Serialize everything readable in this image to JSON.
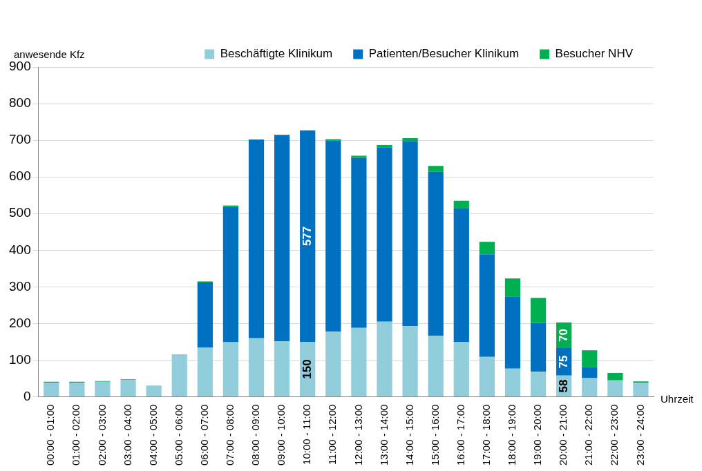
{
  "chart_data": {
    "type": "bar",
    "stacked": true,
    "ylabel": "anwesende Kfz",
    "xlabel": "Uhrzeit",
    "categories": [
      "00:00 - 01:00",
      "01:00 - 02:00",
      "02:00 - 03:00",
      "03:00 - 04:00",
      "04:00 - 05:00",
      "05:00 - 06:00",
      "06:00 - 07:00",
      "07:00 - 08:00",
      "08:00 - 09:00",
      "09:00 - 10:00",
      "10:00 - 11:00",
      "11:00 - 12:00",
      "12:00 - 13:00",
      "13:00 - 14:00",
      "14:00 - 15:00",
      "15:00 - 16:00",
      "16:00 - 17:00",
      "17:00 - 18:00",
      "18:00 - 19:00",
      "19:00 - 20:00",
      "20:00 - 21:00",
      "21:00 - 22:00",
      "22:00 - 23:00",
      "23:00 - 24:00"
    ],
    "series": [
      {
        "name": "Beschäftigte Klinikum",
        "color": "#92cddc",
        "values": [
          39,
          39,
          41,
          46,
          31,
          116,
          134,
          149,
          160,
          152,
          150,
          178,
          188,
          205,
          193,
          167,
          150,
          109,
          77,
          69,
          58,
          51,
          45,
          39
        ],
        "value_labels": [
          null,
          null,
          null,
          null,
          null,
          null,
          null,
          null,
          null,
          null,
          "150",
          null,
          null,
          null,
          null,
          null,
          null,
          null,
          null,
          null,
          "58",
          null,
          null,
          null
        ]
      },
      {
        "name": "Patienten/Besucher Klinikum",
        "color": "#0070c0",
        "values": [
          null,
          null,
          null,
          null,
          null,
          null,
          178,
          370,
          542,
          563,
          577,
          521,
          464,
          476,
          505,
          447,
          365,
          280,
          197,
          133,
          75,
          30,
          null,
          null
        ],
        "value_labels": [
          null,
          null,
          null,
          null,
          null,
          null,
          null,
          null,
          null,
          null,
          "577",
          null,
          null,
          null,
          null,
          null,
          null,
          null,
          null,
          null,
          "75",
          null,
          null,
          null
        ]
      },
      {
        "name": "Besucher NHV",
        "color": "#00b050",
        "values": [
          2,
          2,
          2,
          2,
          null,
          null,
          3,
          3,
          null,
          null,
          null,
          4,
          6,
          6,
          8,
          16,
          20,
          34,
          49,
          68,
          70,
          46,
          20,
          3
        ],
        "value_labels": [
          null,
          null,
          null,
          null,
          null,
          null,
          null,
          null,
          null,
          null,
          null,
          null,
          null,
          null,
          null,
          null,
          null,
          null,
          null,
          null,
          "70",
          null,
          null,
          null
        ]
      }
    ],
    "ylim": [
      0,
      900
    ],
    "yticks": [
      0,
      100,
      200,
      300,
      400,
      500,
      600,
      700,
      800,
      900
    ],
    "grid": "y",
    "legend": "top right"
  }
}
